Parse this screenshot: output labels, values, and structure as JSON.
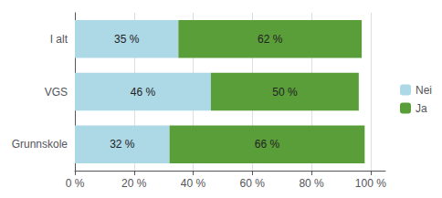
{
  "chart_data": {
    "type": "bar",
    "orientation": "horizontal",
    "stacked": true,
    "categories": [
      "Grunnskole",
      "VGS",
      "I alt"
    ],
    "series": [
      {
        "name": "Nei",
        "color": "#add8e6",
        "values": [
          32,
          46,
          35
        ],
        "value_labels": [
          "32 %",
          "46 %",
          "35 %"
        ]
      },
      {
        "name": "Ja",
        "color": "#5a9e3a",
        "values": [
          66,
          50,
          62
        ],
        "value_labels": [
          "66 %",
          "50 %",
          "62 %"
        ]
      }
    ],
    "xlim": [
      0,
      105
    ],
    "xticks": [
      {
        "value": 0,
        "label": "0 %"
      },
      {
        "value": 20,
        "label": "20 %"
      },
      {
        "value": 40,
        "label": "40 %"
      },
      {
        "value": 60,
        "label": "60 %"
      },
      {
        "value": 80,
        "label": "80 %"
      },
      {
        "value": 100,
        "label": "100 %"
      }
    ],
    "grid": true,
    "legend": "right",
    "data_labels": true
  }
}
